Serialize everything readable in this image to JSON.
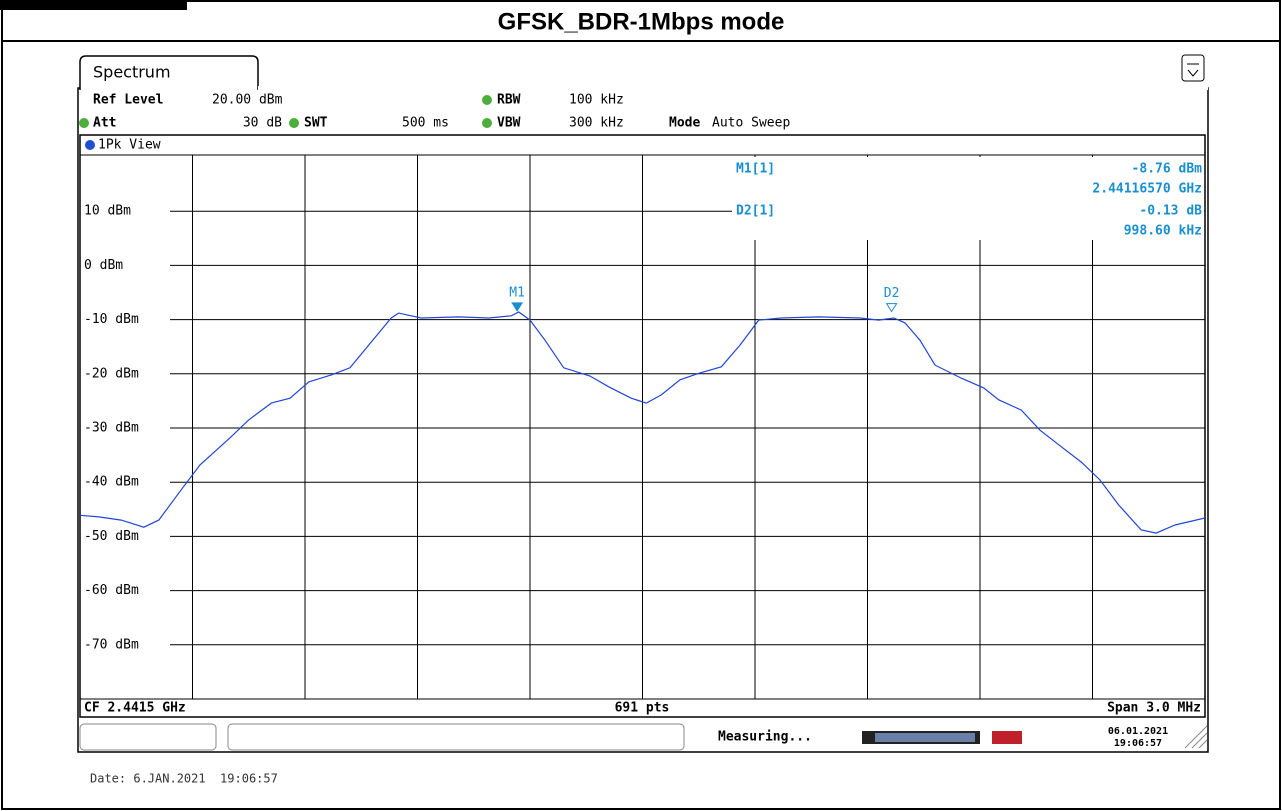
{
  "header": {
    "title": "GFSK_BDR-1Mbps mode"
  },
  "instrument": {
    "tab": "Spectrum",
    "ref_level_label": "Ref Level",
    "ref_level": "20.00 dBm",
    "att_label": "Att",
    "att": "30 dB",
    "swt_label": "SWT",
    "swt": "500 ms",
    "rbw_label": "RBW",
    "rbw": "100 kHz",
    "vbw_label": "VBW",
    "vbw": "300 kHz",
    "mode_label": "Mode",
    "mode": "Auto Sweep",
    "view": "1Pk View",
    "readout": {
      "m1_name": "M1[1]",
      "m1_level": "-8.76 dBm",
      "m1_freq": "2.44116570 GHz",
      "d2_name": "D2[1]",
      "d2_delta": "-0.13 dB",
      "d2_freq": "998.60 kHz"
    },
    "footer": {
      "cf": "CF 2.4415 GHz",
      "points": "691 pts",
      "span": "Span 3.0 MHz"
    },
    "status": {
      "state": "Measuring...",
      "date": "06.01.2021",
      "time": "19:06:57"
    }
  },
  "date_stamp": "Date: 6.JAN.2021  19:06:57",
  "chart_data": {
    "type": "line",
    "color": "#2146d8",
    "x": [
      2440.0,
      2440.05,
      2440.11,
      2440.17,
      2440.21,
      2440.27,
      2440.32,
      2440.4,
      2440.45,
      2440.51,
      2440.56,
      2440.61,
      2440.67,
      2440.72,
      2440.77,
      2440.83,
      2440.85,
      2440.91,
      2441.01,
      2441.09,
      2441.15,
      2441.17,
      2441.2,
      2441.24,
      2441.29,
      2441.36,
      2441.41,
      2441.47,
      2441.51,
      2441.55,
      2441.6,
      2441.65,
      2441.71,
      2441.76,
      2441.81,
      2441.87,
      2441.97,
      2442.08,
      2442.13,
      2442.17,
      2442.2,
      2442.24,
      2442.28,
      2442.35,
      2442.41,
      2442.45,
      2442.51,
      2442.56,
      2442.61,
      2442.67,
      2442.72,
      2442.77,
      2442.83,
      2442.87,
      2442.92,
      2443.0
    ],
    "values": [
      -46.1,
      -46.4,
      -47.0,
      -48.3,
      -47.0,
      -41.4,
      -36.8,
      -31.8,
      -28.5,
      -25.4,
      -24.5,
      -21.5,
      -20.2,
      -18.9,
      -14.7,
      -9.7,
      -8.8,
      -9.7,
      -9.5,
      -9.7,
      -9.3,
      -8.6,
      -10.1,
      -13.8,
      -18.9,
      -20.4,
      -22.4,
      -24.5,
      -25.4,
      -23.9,
      -21.1,
      -19.9,
      -18.7,
      -14.7,
      -10.1,
      -9.7,
      -9.5,
      -9.7,
      -10.1,
      -9.7,
      -10.6,
      -13.8,
      -18.4,
      -20.8,
      -22.6,
      -24.8,
      -26.7,
      -30.4,
      -33.1,
      -36.3,
      -39.6,
      -44.2,
      -48.8,
      -49.4,
      -47.9,
      -46.6
    ],
    "xlim": [
      2440,
      2443
    ],
    "ylim": [
      -80,
      20
    ],
    "yticks": [
      {
        "value": 10,
        "label": "10 dBm"
      },
      {
        "value": 0,
        "label": "0 dBm"
      },
      {
        "value": -10,
        "label": "-10 dBm"
      },
      {
        "value": -20,
        "label": "-20 dBm"
      },
      {
        "value": -30,
        "label": "-30 dBm"
      },
      {
        "value": -40,
        "label": "-40 dBm"
      },
      {
        "value": -50,
        "label": "-50 dBm"
      },
      {
        "value": -60,
        "label": "-60 dBm"
      },
      {
        "value": -70,
        "label": "-70 dBm"
      }
    ],
    "grid": true,
    "markers": [
      {
        "label": "M1",
        "x": 2441.1657,
        "value": -8.76
      },
      {
        "label": "D2",
        "x": 2442.1643,
        "value": -8.89
      }
    ]
  }
}
